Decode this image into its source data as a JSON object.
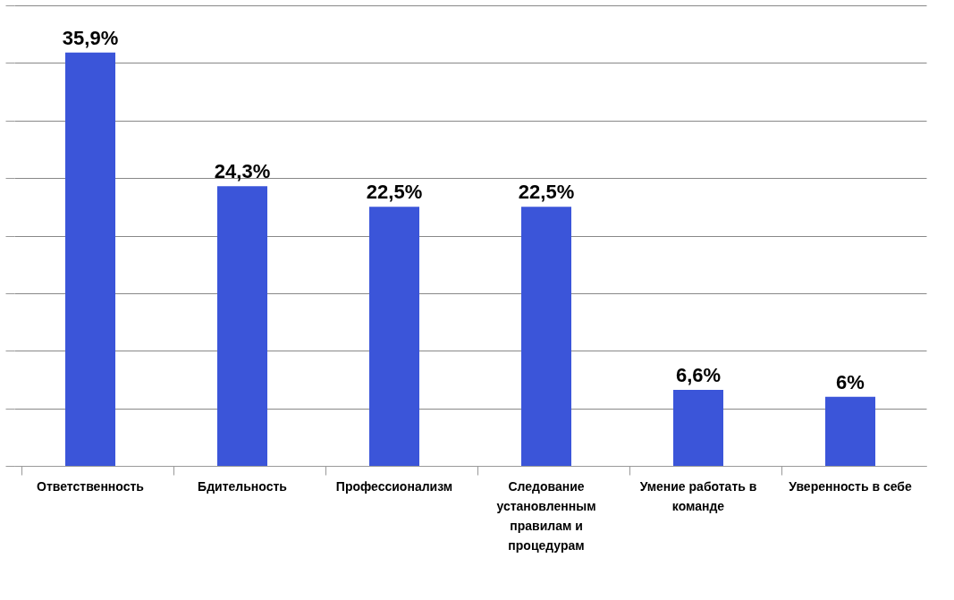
{
  "chart_data": {
    "type": "bar",
    "categories": [
      "Ответственность",
      "Бдительность",
      "Профессионализм",
      "Следование установленным правилам и процедурам",
      "Умение работать в команде",
      "Уверенность в себе"
    ],
    "values": [
      35.9,
      24.3,
      22.5,
      22.5,
      6.6,
      6
    ],
    "value_labels": [
      "35,9%",
      "24,3%",
      "22,5%",
      "22,5%",
      "6,6%",
      "6%"
    ],
    "color": "#3b55d9",
    "ylim": [
      0,
      40
    ],
    "yticks": [
      {
        "value": 0,
        "label": null
      },
      {
        "value": 5,
        "label": null
      },
      {
        "value": 10,
        "label": null
      },
      {
        "value": 15,
        "label": null
      },
      {
        "value": 20,
        "label": null
      },
      {
        "value": 25,
        "label": null
      },
      {
        "value": 30,
        "label": null
      },
      {
        "value": 35,
        "label": null
      },
      {
        "value": 40,
        "label": null
      }
    ],
    "tick_labels": "x",
    "grid": "y"
  }
}
